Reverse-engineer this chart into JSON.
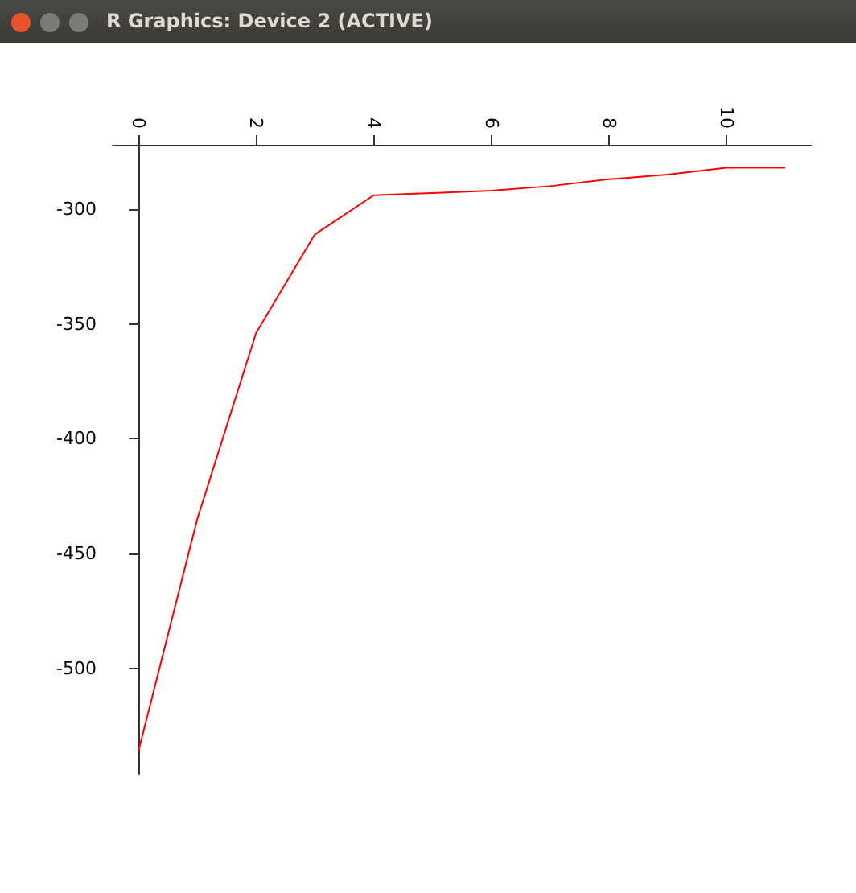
{
  "chart_data": {
    "type": "line",
    "annotations": [
      "R Graphics: Device 2 (ACTIVE)"
    ],
    "x": [
      0,
      1,
      2,
      3,
      4,
      5,
      6,
      7,
      8,
      9,
      10,
      11
    ],
    "series": [
      {
        "color": "#ff0000",
        "values": [
          -536,
          -435,
          -354,
          -311,
          -294,
          -293,
          -292,
          -290,
          -287,
          -285,
          -282,
          -282
        ]
      }
    ],
    "xlim": [
      -0.44,
      11.44
    ],
    "xticks": [
      0,
      2,
      4,
      6,
      8,
      10
    ],
    "ylim": [
      -546,
      -272
    ],
    "yticks": [
      -500,
      -450,
      -400,
      -350,
      -300
    ],
    "grid": false,
    "marker": "none",
    "line_style": "solid"
  }
}
